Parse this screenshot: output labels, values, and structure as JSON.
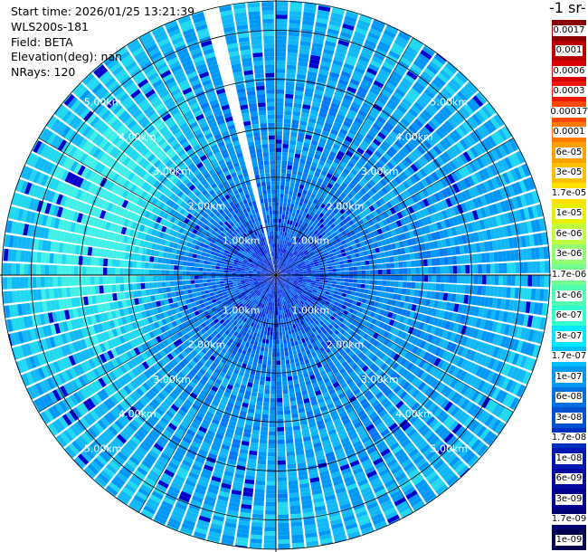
{
  "info": {
    "start_time": "Start time: 2026/01/25 13:21:39",
    "instrument": "WLS200s-181",
    "field": "Field: BETA",
    "elevation": "Elevation(deg): nan",
    "nrays": "NRays: 120"
  },
  "colorbar": {
    "title": "-1 sr-",
    "labels": [
      "0.0017",
      "0.001",
      "0.0006",
      "0.0003",
      "0.00017",
      "0.0001",
      "6e-05",
      "3e-05",
      "1.7e-05",
      "1e-05",
      "6e-06",
      "3e-06",
      "1.7e-06",
      "1e-06",
      "6e-07",
      "3e-07",
      "1.7e-07",
      "1e-07",
      "6e-08",
      "3e-08",
      "1.7e-08",
      "1e-08",
      "6e-09",
      "3e-09",
      "1.7e-09",
      "1e-09"
    ],
    "colors": [
      "#8b0000",
      "#b80000",
      "#d80000",
      "#f01808",
      "#ff4800",
      "#ff7800",
      "#ffa000",
      "#ffc000",
      "#ffe000",
      "#e8f000",
      "#c0ff40",
      "#90ff70",
      "#70ff90",
      "#50ffb0",
      "#30ffd0",
      "#00e8ff",
      "#00c0ff",
      "#0098f0",
      "#0070e0",
      "#0050d0",
      "#0030c0",
      "#0018b0",
      "#0008a0",
      "#000090",
      "#000070",
      "#000050"
    ]
  },
  "chart_data": {
    "type": "heatmap",
    "projection": "polar-ppi",
    "field": "BETA",
    "nrays": 120,
    "range_km_max": 5.6,
    "range_rings_km": [
      1,
      2,
      3,
      4,
      5
    ],
    "ring_labels": [
      "1.00km",
      "2.00km",
      "3.00km",
      "4.00km",
      "5.00km"
    ],
    "missing_azimuth_deg": [
      -16,
      -11
    ],
    "dominant_beta_range": [
      1e-08,
      1.7e-07
    ],
    "enhanced_region": "north-west sector, 2-5 km",
    "colorscale": "log"
  }
}
